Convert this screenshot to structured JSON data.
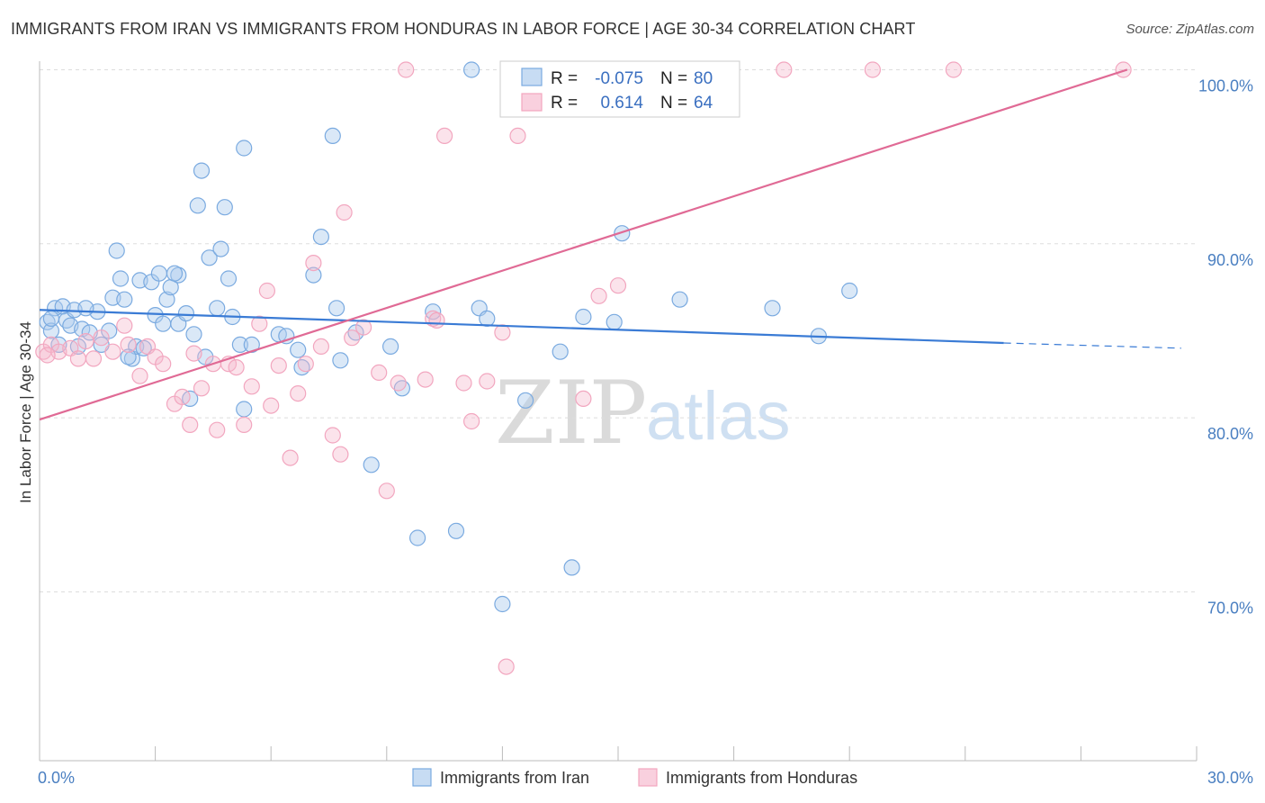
{
  "title": "IMMIGRANTS FROM IRAN VS IMMIGRANTS FROM HONDURAS IN LABOR FORCE | AGE 30-34 CORRELATION CHART",
  "source": "Source: ZipAtlas.com",
  "watermark": {
    "zip": "ZIP",
    "atlas": "atlas"
  },
  "chart_data": {
    "type": "scatter",
    "ylabel": "In Labor Force | Age 30-34",
    "x_tick_labels": [
      "0.0%",
      "30.0%"
    ],
    "y_tick_labels": [
      "100.0%",
      "90.0%",
      "80.0%",
      "70.0%"
    ],
    "xlim": [
      0,
      30
    ],
    "ylim": [
      60.3,
      100.8
    ],
    "y_ticks": [
      100,
      90,
      80,
      70
    ],
    "grid": true,
    "legend": {
      "placement": "top-center",
      "entries": [
        {
          "r_label": "R =",
          "r_value": "-0.075",
          "n_label": "N =",
          "n_value": "80"
        },
        {
          "r_label": "R =",
          "r_value": "0.614",
          "n_label": "N =",
          "n_value": "64"
        }
      ]
    },
    "series": [
      {
        "name": "Immigrants from Iran",
        "color": "#7aaae0",
        "line_color": "#3a7bd5",
        "trend": {
          "x": [
            0,
            25.0
          ],
          "y": [
            86.2,
            84.3
          ],
          "dashed_to": [
            29.6,
            84.0
          ]
        },
        "points": [
          [
            0.2,
            85.5
          ],
          [
            0.3,
            85.0
          ],
          [
            0.4,
            86.3
          ],
          [
            0.5,
            84.2
          ],
          [
            0.6,
            86.4
          ],
          [
            0.7,
            85.6
          ],
          [
            0.8,
            85.3
          ],
          [
            0.9,
            86.2
          ],
          [
            1.0,
            84.1
          ],
          [
            1.1,
            85.1
          ],
          [
            1.3,
            84.9
          ],
          [
            1.5,
            86.1
          ],
          [
            1.6,
            84.2
          ],
          [
            1.8,
            85.0
          ],
          [
            1.9,
            86.9
          ],
          [
            2.0,
            89.6
          ],
          [
            2.1,
            88.0
          ],
          [
            2.2,
            86.8
          ],
          [
            2.4,
            83.4
          ],
          [
            2.5,
            84.1
          ],
          [
            2.6,
            87.9
          ],
          [
            2.7,
            84.0
          ],
          [
            2.9,
            87.8
          ],
          [
            3.0,
            85.9
          ],
          [
            3.1,
            88.3
          ],
          [
            3.2,
            85.4
          ],
          [
            3.3,
            86.8
          ],
          [
            3.4,
            87.5
          ],
          [
            3.6,
            85.4
          ],
          [
            3.6,
            88.2
          ],
          [
            3.8,
            86.0
          ],
          [
            3.9,
            81.1
          ],
          [
            4.0,
            84.8
          ],
          [
            4.1,
            92.2
          ],
          [
            4.2,
            94.2
          ],
          [
            4.3,
            83.5
          ],
          [
            4.4,
            89.2
          ],
          [
            4.6,
            86.3
          ],
          [
            4.7,
            89.7
          ],
          [
            4.8,
            92.1
          ],
          [
            4.9,
            88.0
          ],
          [
            5.0,
            85.8
          ],
          [
            5.2,
            84.2
          ],
          [
            5.3,
            95.5
          ],
          [
            5.3,
            80.5
          ],
          [
            5.5,
            84.2
          ],
          [
            6.2,
            84.8
          ],
          [
            6.7,
            83.9
          ],
          [
            6.8,
            82.9
          ],
          [
            7.1,
            88.2
          ],
          [
            7.3,
            90.4
          ],
          [
            7.6,
            96.2
          ],
          [
            7.7,
            86.3
          ],
          [
            7.8,
            83.3
          ],
          [
            8.2,
            84.9
          ],
          [
            8.6,
            77.3
          ],
          [
            9.1,
            84.1
          ],
          [
            9.4,
            81.7
          ],
          [
            9.8,
            73.1
          ],
          [
            10.2,
            86.1
          ],
          [
            10.8,
            73.5
          ],
          [
            11.2,
            100.0
          ],
          [
            11.4,
            86.3
          ],
          [
            11.6,
            85.7
          ],
          [
            12.0,
            69.3
          ],
          [
            12.6,
            81.0
          ],
          [
            13.5,
            83.8
          ],
          [
            13.8,
            71.4
          ],
          [
            14.1,
            85.8
          ],
          [
            14.9,
            85.5
          ],
          [
            15.1,
            90.6
          ],
          [
            16.6,
            86.8
          ],
          [
            19.0,
            86.3
          ],
          [
            20.2,
            84.7
          ],
          [
            21.0,
            87.3
          ],
          [
            0.3,
            85.7
          ],
          [
            1.2,
            86.3
          ],
          [
            2.3,
            83.5
          ],
          [
            3.5,
            88.3
          ],
          [
            6.4,
            84.7
          ]
        ]
      },
      {
        "name": "Immigrants from Honduras",
        "color": "#f2a6bf",
        "line_color": "#e06a95",
        "trend": {
          "x": [
            0,
            28.2
          ],
          "y": [
            79.9,
            100.0
          ]
        },
        "points": [
          [
            0.1,
            83.8
          ],
          [
            0.3,
            84.2
          ],
          [
            0.5,
            83.8
          ],
          [
            0.8,
            84.0
          ],
          [
            1.0,
            83.4
          ],
          [
            1.2,
            84.4
          ],
          [
            1.4,
            83.4
          ],
          [
            1.6,
            84.6
          ],
          [
            1.9,
            83.8
          ],
          [
            2.2,
            85.3
          ],
          [
            2.3,
            84.2
          ],
          [
            2.6,
            82.4
          ],
          [
            2.8,
            84.1
          ],
          [
            3.0,
            83.5
          ],
          [
            3.2,
            83.1
          ],
          [
            3.5,
            80.8
          ],
          [
            3.7,
            81.2
          ],
          [
            3.9,
            79.6
          ],
          [
            4.0,
            83.7
          ],
          [
            4.2,
            81.7
          ],
          [
            4.5,
            83.1
          ],
          [
            4.6,
            79.3
          ],
          [
            4.9,
            83.1
          ],
          [
            5.1,
            82.9
          ],
          [
            5.3,
            79.6
          ],
          [
            5.5,
            81.8
          ],
          [
            5.7,
            85.4
          ],
          [
            5.9,
            87.3
          ],
          [
            6.0,
            80.7
          ],
          [
            6.2,
            83.0
          ],
          [
            6.5,
            77.7
          ],
          [
            6.7,
            81.4
          ],
          [
            6.9,
            83.1
          ],
          [
            7.1,
            88.9
          ],
          [
            7.3,
            84.1
          ],
          [
            7.6,
            79.0
          ],
          [
            7.8,
            77.9
          ],
          [
            7.9,
            91.8
          ],
          [
            8.1,
            84.6
          ],
          [
            8.4,
            85.2
          ],
          [
            8.8,
            82.6
          ],
          [
            9.0,
            75.8
          ],
          [
            9.3,
            82.0
          ],
          [
            9.5,
            100.0
          ],
          [
            10.0,
            82.2
          ],
          [
            10.2,
            85.7
          ],
          [
            10.5,
            96.2
          ],
          [
            11.0,
            82.0
          ],
          [
            11.2,
            79.8
          ],
          [
            11.6,
            82.1
          ],
          [
            12.0,
            84.9
          ],
          [
            12.1,
            65.7
          ],
          [
            12.4,
            96.2
          ],
          [
            14.1,
            81.1
          ],
          [
            14.5,
            87.0
          ],
          [
            15.0,
            87.6
          ],
          [
            15.8,
            98.5
          ],
          [
            16.8,
            100.0
          ],
          [
            19.3,
            100.0
          ],
          [
            21.6,
            100.0
          ],
          [
            23.7,
            100.0
          ],
          [
            28.1,
            100.0
          ],
          [
            0.2,
            83.6
          ],
          [
            10.3,
            85.6
          ]
        ]
      }
    ]
  },
  "bottom_legend": [
    {
      "label": "Immigrants from Iran"
    },
    {
      "label": "Immigrants from Honduras"
    }
  ]
}
